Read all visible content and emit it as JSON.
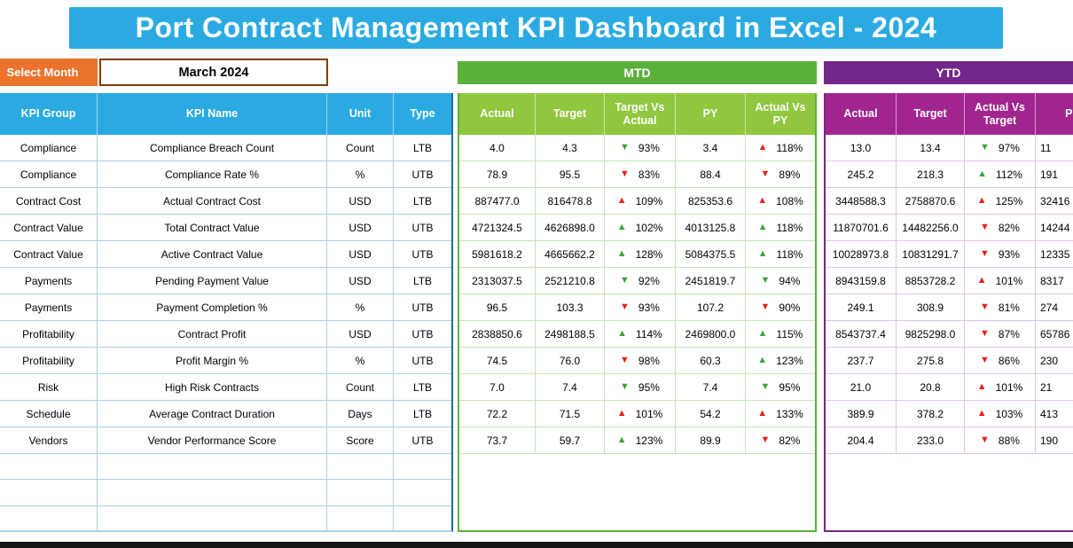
{
  "title": "Port Contract Management KPI Dashboard in Excel - 2024",
  "controls": {
    "select_month_label": "Select Month",
    "selected_month": "March 2024"
  },
  "sections": {
    "mtd_label": "MTD",
    "ytd_label": "YTD"
  },
  "colors": {
    "title-bg": "#2BAAE2",
    "header-blue": "#2BAAE2",
    "select-orange": "#EB732B",
    "month-border": "#833C00",
    "mtd-bar": "#5BB03C",
    "mtd-header": "#90C73E",
    "ytd-bar": "#73268B",
    "ytd-header": "#A1258F",
    "arrow-green": "#3DA43C",
    "arrow-red": "#E3231A",
    "grid-blue": "#A8CFEA",
    "grid-green": "#C9E3BA",
    "grid-purple": "#DCC6E4",
    "left-edge": "#1C6E93"
  },
  "table": {
    "left_headers": [
      "KPI Group",
      "KPI Name",
      "Unit",
      "Type"
    ],
    "mtd_headers": [
      "Actual",
      "Target",
      "Target Vs Actual",
      "PY",
      "Actual Vs PY"
    ],
    "ytd_headers": [
      "Actual",
      "Target",
      "Actual Vs Target",
      "PY"
    ],
    "rows": [
      {
        "group": "Compliance",
        "name": "Compliance Breach Count",
        "unit": "Count",
        "type": "LTB",
        "mtd": {
          "actual": "4.0",
          "target": "4.3",
          "tva": {
            "dir": "down",
            "color": "green",
            "pct": "93%"
          },
          "py": "3.4",
          "avp": {
            "dir": "up",
            "color": "red",
            "pct": "118%"
          }
        },
        "ytd": {
          "actual": "13.0",
          "target": "13.4",
          "avt": {
            "dir": "down",
            "color": "green",
            "pct": "97%"
          },
          "py": "11"
        }
      },
      {
        "group": "Compliance",
        "name": "Compliance Rate %",
        "unit": "%",
        "type": "UTB",
        "mtd": {
          "actual": "78.9",
          "target": "95.5",
          "tva": {
            "dir": "down",
            "color": "red",
            "pct": "83%"
          },
          "py": "88.4",
          "avp": {
            "dir": "down",
            "color": "red",
            "pct": "89%"
          }
        },
        "ytd": {
          "actual": "245.2",
          "target": "218.3",
          "avt": {
            "dir": "up",
            "color": "green",
            "pct": "112%"
          },
          "py": "191"
        }
      },
      {
        "group": "Contract Cost",
        "name": "Actual Contract Cost",
        "unit": "USD",
        "type": "LTB",
        "mtd": {
          "actual": "887477.0",
          "target": "816478.8",
          "tva": {
            "dir": "up",
            "color": "red",
            "pct": "109%"
          },
          "py": "825353.6",
          "avp": {
            "dir": "up",
            "color": "red",
            "pct": "108%"
          }
        },
        "ytd": {
          "actual": "3448588.3",
          "target": "2758870.6",
          "avt": {
            "dir": "up",
            "color": "red",
            "pct": "125%"
          },
          "py": "32416"
        }
      },
      {
        "group": "Contract Value",
        "name": "Total Contract Value",
        "unit": "USD",
        "type": "UTB",
        "mtd": {
          "actual": "4721324.5",
          "target": "4626898.0",
          "tva": {
            "dir": "up",
            "color": "green",
            "pct": "102%"
          },
          "py": "4013125.8",
          "avp": {
            "dir": "up",
            "color": "green",
            "pct": "118%"
          }
        },
        "ytd": {
          "actual": "11870701.6",
          "target": "14482256.0",
          "avt": {
            "dir": "down",
            "color": "red",
            "pct": "82%"
          },
          "py": "14244"
        }
      },
      {
        "group": "Contract Value",
        "name": "Active Contract Value",
        "unit": "USD",
        "type": "UTB",
        "mtd": {
          "actual": "5981618.2",
          "target": "4665662.2",
          "tva": {
            "dir": "up",
            "color": "green",
            "pct": "128%"
          },
          "py": "5084375.5",
          "avp": {
            "dir": "up",
            "color": "green",
            "pct": "118%"
          }
        },
        "ytd": {
          "actual": "10028973.8",
          "target": "10831291.7",
          "avt": {
            "dir": "down",
            "color": "red",
            "pct": "93%"
          },
          "py": "12335"
        }
      },
      {
        "group": "Payments",
        "name": "Pending Payment Value",
        "unit": "USD",
        "type": "LTB",
        "mtd": {
          "actual": "2313037.5",
          "target": "2521210.8",
          "tva": {
            "dir": "down",
            "color": "green",
            "pct": "92%"
          },
          "py": "2451819.7",
          "avp": {
            "dir": "down",
            "color": "green",
            "pct": "94%"
          }
        },
        "ytd": {
          "actual": "8943159.8",
          "target": "8853728.2",
          "avt": {
            "dir": "up",
            "color": "red",
            "pct": "101%"
          },
          "py": "8317"
        }
      },
      {
        "group": "Payments",
        "name": "Payment Completion %",
        "unit": "%",
        "type": "UTB",
        "mtd": {
          "actual": "96.5",
          "target": "103.3",
          "tva": {
            "dir": "down",
            "color": "red",
            "pct": "93%"
          },
          "py": "107.2",
          "avp": {
            "dir": "down",
            "color": "red",
            "pct": "90%"
          }
        },
        "ytd": {
          "actual": "249.1",
          "target": "308.9",
          "avt": {
            "dir": "down",
            "color": "red",
            "pct": "81%"
          },
          "py": "274"
        }
      },
      {
        "group": "Profitability",
        "name": "Contract Profit",
        "unit": "USD",
        "type": "UTB",
        "mtd": {
          "actual": "2838850.6",
          "target": "2498188.5",
          "tva": {
            "dir": "up",
            "color": "green",
            "pct": "114%"
          },
          "py": "2469800.0",
          "avp": {
            "dir": "up",
            "color": "green",
            "pct": "115%"
          }
        },
        "ytd": {
          "actual": "8543737.4",
          "target": "9825298.0",
          "avt": {
            "dir": "down",
            "color": "red",
            "pct": "87%"
          },
          "py": "65786"
        }
      },
      {
        "group": "Profitability",
        "name": "Profit Margin %",
        "unit": "%",
        "type": "UTB",
        "mtd": {
          "actual": "74.5",
          "target": "76.0",
          "tva": {
            "dir": "down",
            "color": "red",
            "pct": "98%"
          },
          "py": "60.3",
          "avp": {
            "dir": "up",
            "color": "green",
            "pct": "123%"
          }
        },
        "ytd": {
          "actual": "237.7",
          "target": "275.8",
          "avt": {
            "dir": "down",
            "color": "red",
            "pct": "86%"
          },
          "py": "230"
        }
      },
      {
        "group": "Risk",
        "name": "High Risk Contracts",
        "unit": "Count",
        "type": "LTB",
        "mtd": {
          "actual": "7.0",
          "target": "7.4",
          "tva": {
            "dir": "down",
            "color": "green",
            "pct": "95%"
          },
          "py": "7.4",
          "avp": {
            "dir": "down",
            "color": "green",
            "pct": "95%"
          }
        },
        "ytd": {
          "actual": "21.0",
          "target": "20.8",
          "avt": {
            "dir": "up",
            "color": "red",
            "pct": "101%"
          },
          "py": "21"
        }
      },
      {
        "group": "Schedule",
        "name": "Average Contract Duration",
        "unit": "Days",
        "type": "LTB",
        "mtd": {
          "actual": "72.2",
          "target": "71.5",
          "tva": {
            "dir": "up",
            "color": "red",
            "pct": "101%"
          },
          "py": "54.2",
          "avp": {
            "dir": "up",
            "color": "red",
            "pct": "133%"
          }
        },
        "ytd": {
          "actual": "389.9",
          "target": "378.2",
          "avt": {
            "dir": "up",
            "color": "red",
            "pct": "103%"
          },
          "py": "413"
        }
      },
      {
        "group": "Vendors",
        "name": "Vendor Performance Score",
        "unit": "Score",
        "type": "UTB",
        "mtd": {
          "actual": "73.7",
          "target": "59.7",
          "tva": {
            "dir": "up",
            "color": "green",
            "pct": "123%"
          },
          "py": "89.9",
          "avp": {
            "dir": "down",
            "color": "red",
            "pct": "82%"
          }
        },
        "ytd": {
          "actual": "204.4",
          "target": "233.0",
          "avt": {
            "dir": "down",
            "color": "red",
            "pct": "88%"
          },
          "py": "190"
        }
      }
    ],
    "empty_row_count": 3
  }
}
